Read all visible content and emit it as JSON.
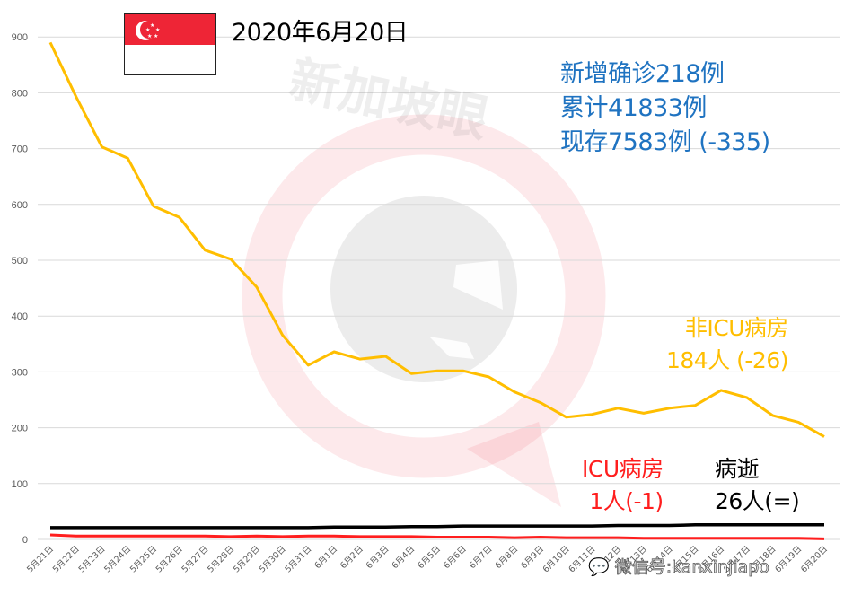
{
  "header": {
    "date_title": "2020年6月20日",
    "flag": "singapore-flag"
  },
  "stats": {
    "new_cases": "新增确诊218例",
    "cumulative": "累计41833例",
    "active": "现存7583例 (-335)"
  },
  "labels": {
    "non_icu_title": "非ICU病房",
    "non_icu_value": "184人 (-26)",
    "icu_title": "ICU病房",
    "icu_value": "1人(-1)",
    "death_title": "病逝",
    "death_value": "26人(=)"
  },
  "watermark": {
    "brand": "新加坡眼",
    "wechat": "微信号:kanxinjiapo"
  },
  "colors": {
    "non_icu": "#FFBE00",
    "icu": "#FF1E1E",
    "death": "#000000",
    "grid": "#D9D9D9",
    "stats_blue": "#1F73C1"
  },
  "chart_data": {
    "type": "line",
    "title": "2020年6月20日",
    "xlabel": "",
    "ylabel": "",
    "ylim": [
      0,
      900
    ],
    "yticks": [
      0,
      100,
      200,
      300,
      400,
      500,
      600,
      700,
      800,
      900
    ],
    "grid": true,
    "legend_position": "inline labels",
    "categories": [
      "5月21日",
      "5月22日",
      "5月23日",
      "5月24日",
      "5月25日",
      "5月26日",
      "5月27日",
      "5月28日",
      "5月29日",
      "5月30日",
      "5月31日",
      "6月1日",
      "6月2日",
      "6月3日",
      "6月4日",
      "6月5日",
      "6月6日",
      "6月7日",
      "6月8日",
      "6月9日",
      "6月10日",
      "6月11日",
      "6月12日",
      "6月13日",
      "6月14日",
      "6月15日",
      "6月16日",
      "6月17日",
      "6月18日",
      "6月19日",
      "6月20日"
    ],
    "series": [
      {
        "name": "非ICU病房",
        "color": "#FFBE00",
        "values": [
          890,
          793,
          703,
          683,
          597,
          577,
          518,
          502,
          452,
          366,
          312,
          336,
          323,
          328,
          297,
          302,
          302,
          291,
          264,
          245,
          219,
          224,
          235,
          226,
          235,
          240,
          267,
          254,
          222,
          210,
          184
        ]
      },
      {
        "name": "ICU病房",
        "color": "#FF1E1E",
        "values": [
          8,
          6,
          6,
          6,
          6,
          6,
          6,
          5,
          6,
          5,
          6,
          6,
          5,
          5,
          5,
          4,
          4,
          4,
          3,
          4,
          3,
          3,
          3,
          2,
          2,
          2,
          2,
          2,
          2,
          2,
          1
        ]
      },
      {
        "name": "病逝",
        "color": "#000000",
        "values": [
          21,
          21,
          21,
          21,
          21,
          21,
          21,
          21,
          21,
          21,
          21,
          22,
          22,
          22,
          23,
          23,
          24,
          24,
          24,
          24,
          24,
          24,
          25,
          25,
          25,
          26,
          26,
          26,
          26,
          26,
          26
        ]
      }
    ]
  }
}
